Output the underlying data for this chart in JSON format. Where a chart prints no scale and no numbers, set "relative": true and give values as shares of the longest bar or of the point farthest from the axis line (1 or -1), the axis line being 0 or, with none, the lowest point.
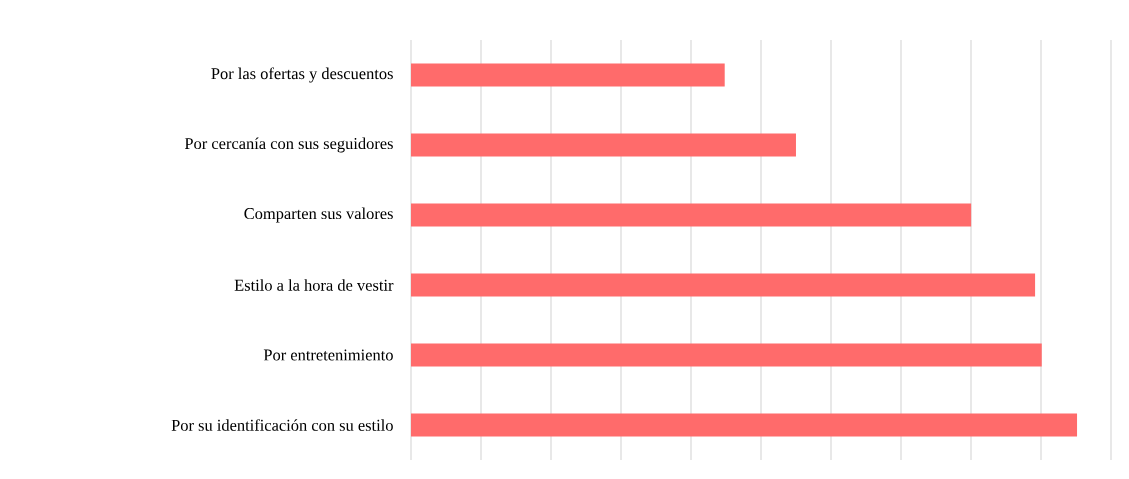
{
  "chart_data": {
    "type": "bar",
    "orientation": "horizontal",
    "relative": true,
    "categories": [
      "Por las ofertas y descuentos",
      "Por cercanía con sus seguidores",
      "Comparten sus valores",
      "Estilo a la hora de vestir",
      "Por entretenimiento",
      "Por su identificación con su estilo"
    ],
    "values": [
      0.471,
      0.578,
      0.841,
      0.937,
      0.947,
      1
    ],
    "color": "#ff6b6b",
    "grid": "x"
  }
}
